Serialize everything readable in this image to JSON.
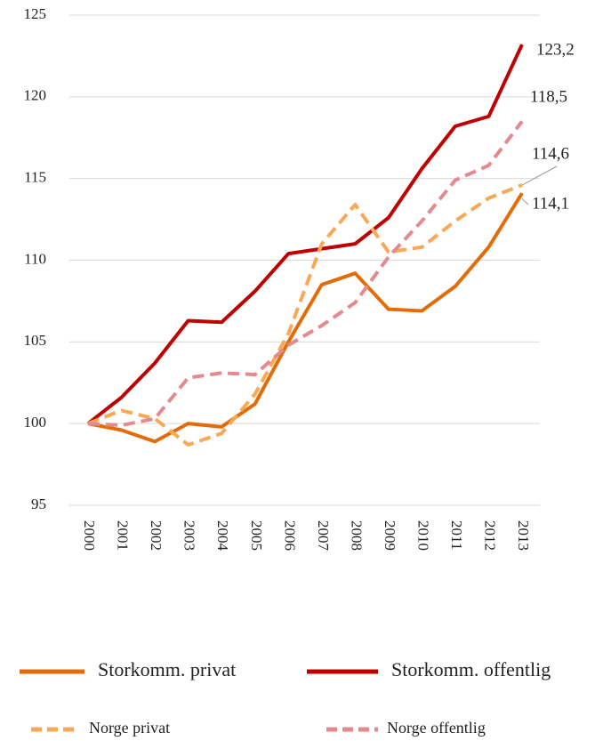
{
  "chart_data": {
    "type": "line",
    "categories": [
      "2000",
      "2001",
      "2002",
      "2003",
      "2004",
      "2005",
      "2006",
      "2007",
      "2008",
      "2009",
      "2010",
      "2011",
      "2012",
      "2013"
    ],
    "series": [
      {
        "name": "Storkomm. privat",
        "color": "#e36c09",
        "dashed": false,
        "values": [
          100,
          99.6,
          98.9,
          100,
          99.8,
          101.2,
          105,
          108.5,
          109.2,
          107,
          106.9,
          108.4,
          110.8,
          114.1
        ],
        "value_labels": [
          null,
          null,
          null,
          null,
          null,
          null,
          null,
          null,
          null,
          null,
          null,
          null,
          null,
          "114,1"
        ]
      },
      {
        "name": "Storkomm. offentlig",
        "color": "#c00000",
        "dashed": false,
        "values": [
          100,
          101.6,
          103.7,
          106.3,
          106.2,
          108.1,
          110.4,
          110.7,
          111,
          112.6,
          115.6,
          118.2,
          118.8,
          123.2
        ],
        "value_labels": [
          null,
          null,
          null,
          null,
          null,
          null,
          null,
          null,
          null,
          null,
          null,
          null,
          null,
          "123,2"
        ]
      },
      {
        "name": "Norge privat",
        "color": "#f9a857",
        "dashed": true,
        "values": [
          100,
          100.8,
          100.3,
          98.7,
          99.4,
          101.8,
          105.5,
          111,
          113.4,
          110.5,
          110.8,
          112.4,
          113.8,
          114.6
        ],
        "value_labels": [
          null,
          null,
          null,
          null,
          null,
          null,
          null,
          null,
          null,
          null,
          null,
          null,
          null,
          "114,6"
        ]
      },
      {
        "name": "Norge offentlig",
        "color": "#e48a8f",
        "dashed": true,
        "values": [
          100,
          99.9,
          100.3,
          102.8,
          103.1,
          103,
          104.8,
          106,
          107.4,
          110.2,
          112.4,
          114.9,
          115.8,
          118.5
        ],
        "value_labels": [
          null,
          null,
          null,
          null,
          null,
          null,
          null,
          null,
          null,
          null,
          null,
          null,
          null,
          "118,5"
        ]
      }
    ],
    "ylim": [
      95,
      125
    ],
    "yticks": [
      95,
      100,
      105,
      110,
      115,
      120,
      125
    ],
    "grid": true
  }
}
